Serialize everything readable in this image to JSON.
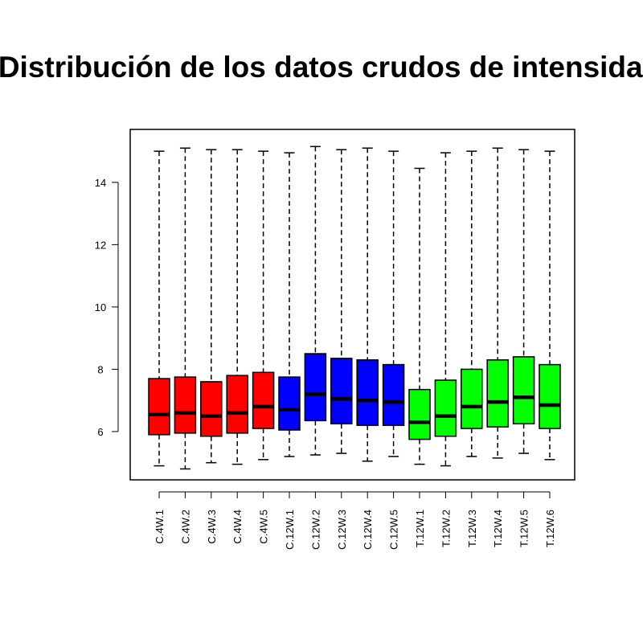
{
  "chart_data": {
    "type": "boxplot",
    "title": "Distribución de los datos crudos de intensidad",
    "xlabel": "",
    "ylabel": "",
    "ylim": [
      4.45,
      15.7
    ],
    "yticks": [
      6,
      8,
      10,
      12,
      14
    ],
    "ytick_labels": [
      "6",
      "8",
      "10",
      "12",
      "14"
    ],
    "grid": false,
    "legend": "none",
    "categories": [
      "C.4W.1",
      "C.4W.2",
      "C.4W.3",
      "C.4W.4",
      "C.4W.5",
      "C.12W.1",
      "C.12W.2",
      "C.12W.3",
      "C.12W.4",
      "C.12W.5",
      "T.12W.1",
      "T.12W.2",
      "T.12W.3",
      "T.12W.4",
      "T.12W.5",
      "T.12W.6"
    ],
    "colors": [
      "#ff0000",
      "#ff0000",
      "#ff0000",
      "#ff0000",
      "#ff0000",
      "#0000ff",
      "#0000ff",
      "#0000ff",
      "#0000ff",
      "#0000ff",
      "#00ff00",
      "#00ff00",
      "#00ff00",
      "#00ff00",
      "#00ff00",
      "#00ff00"
    ],
    "boxes": [
      {
        "min": 4.9,
        "q1": 5.9,
        "median": 6.55,
        "q3": 7.7,
        "max": 15.0
      },
      {
        "min": 4.8,
        "q1": 5.95,
        "median": 6.6,
        "q3": 7.75,
        "max": 15.1
      },
      {
        "min": 5.0,
        "q1": 5.85,
        "median": 6.5,
        "q3": 7.6,
        "max": 15.05
      },
      {
        "min": 4.95,
        "q1": 5.95,
        "median": 6.6,
        "q3": 7.8,
        "max": 15.05
      },
      {
        "min": 5.1,
        "q1": 6.1,
        "median": 6.8,
        "q3": 7.9,
        "max": 15.0
      },
      {
        "min": 5.2,
        "q1": 6.05,
        "median": 6.7,
        "q3": 7.75,
        "max": 14.95
      },
      {
        "min": 5.25,
        "q1": 6.35,
        "median": 7.2,
        "q3": 8.5,
        "max": 15.15
      },
      {
        "min": 5.3,
        "q1": 6.25,
        "median": 7.05,
        "q3": 8.35,
        "max": 15.05
      },
      {
        "min": 5.05,
        "q1": 6.2,
        "median": 7.0,
        "q3": 8.3,
        "max": 15.1
      },
      {
        "min": 5.2,
        "q1": 6.2,
        "median": 6.95,
        "q3": 8.15,
        "max": 15.0
      },
      {
        "min": 4.95,
        "q1": 5.75,
        "median": 6.3,
        "q3": 7.35,
        "max": 14.45
      },
      {
        "min": 4.9,
        "q1": 5.85,
        "median": 6.5,
        "q3": 7.65,
        "max": 14.95
      },
      {
        "min": 5.2,
        "q1": 6.1,
        "median": 6.8,
        "q3": 8.0,
        "max": 15.0
      },
      {
        "min": 5.15,
        "q1": 6.15,
        "median": 6.95,
        "q3": 8.3,
        "max": 15.1
      },
      {
        "min": 5.3,
        "q1": 6.25,
        "median": 7.1,
        "q3": 8.4,
        "max": 15.05
      },
      {
        "min": 5.1,
        "q1": 6.1,
        "median": 6.85,
        "q3": 8.15,
        "max": 15.0
      }
    ]
  }
}
